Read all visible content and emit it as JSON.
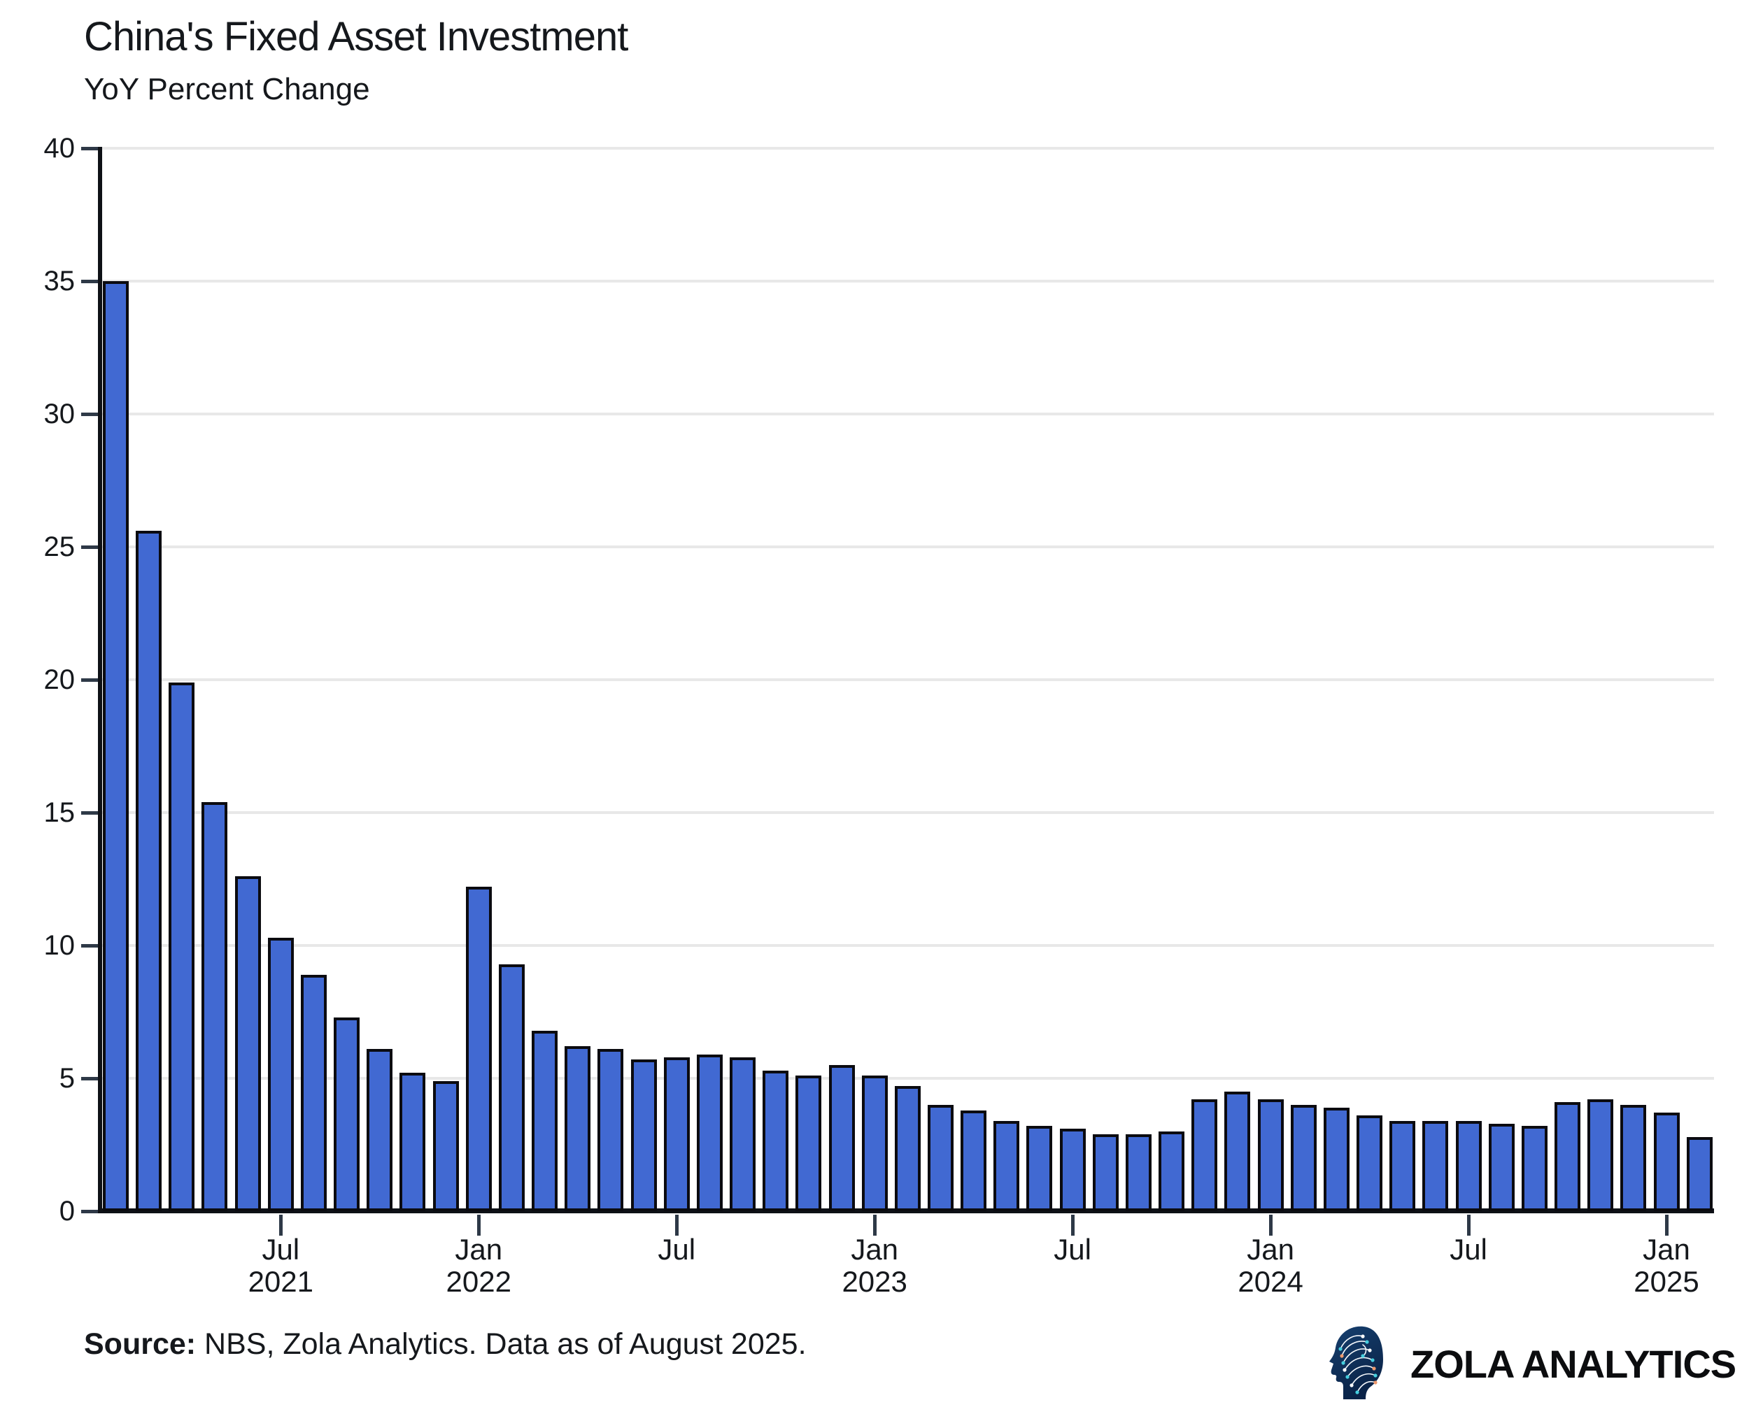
{
  "header": {
    "title": "China's Fixed Asset Investment",
    "subtitle": "YoY Percent Change"
  },
  "chart_data": {
    "type": "bar",
    "title": "China's Fixed Asset Investment",
    "subtitle": "YoY Percent Change",
    "ylabel": "YoY Percent Change",
    "ylim": [
      0,
      40
    ],
    "yticks": [
      0,
      5,
      10,
      15,
      20,
      25,
      30,
      35,
      40
    ],
    "grid": true,
    "x": [
      "Feb 2021",
      "Mar 2021",
      "Apr 2021",
      "May 2021",
      "Jun 2021",
      "Jul 2021",
      "Aug 2021",
      "Sep 2021",
      "Oct 2021",
      "Nov 2021",
      "Dec 2021",
      "Feb 2022",
      "Mar 2022",
      "Apr 2022",
      "May 2022",
      "Jun 2022",
      "Jul 2022",
      "Aug 2022",
      "Sep 2022",
      "Oct 2022",
      "Nov 2022",
      "Dec 2022",
      "Feb 2023",
      "Mar 2023",
      "Apr 2023",
      "May 2023",
      "Jun 2023",
      "Jul 2023",
      "Aug 2023",
      "Sep 2023",
      "Oct 2023",
      "Nov 2023",
      "Dec 2023",
      "Feb 2024",
      "Mar 2024",
      "Apr 2024",
      "May 2024",
      "Jun 2024",
      "Jul 2024",
      "Aug 2024",
      "Sep 2024",
      "Oct 2024",
      "Nov 2024",
      "Dec 2024",
      "Feb 2025",
      "Mar 2025",
      "Apr 2025",
      "May 2025",
      "Jun 2025"
    ],
    "values": [
      35.0,
      25.6,
      19.9,
      15.4,
      12.6,
      10.3,
      8.9,
      7.3,
      6.1,
      5.2,
      4.9,
      12.2,
      9.3,
      6.8,
      6.2,
      6.1,
      5.7,
      5.8,
      5.9,
      5.8,
      5.3,
      5.1,
      5.5,
      5.1,
      4.7,
      4.0,
      3.8,
      3.4,
      3.2,
      3.1,
      2.9,
      2.9,
      3.0,
      4.2,
      4.5,
      4.2,
      4.0,
      3.9,
      3.6,
      3.4,
      3.4,
      3.4,
      3.3,
      3.2,
      4.1,
      4.2,
      4.0,
      3.7,
      2.8
    ],
    "xticks": [
      {
        "index": 5,
        "line1": "Jul",
        "line2": "2021"
      },
      {
        "index": 11,
        "line1": "Jan",
        "line2": "2022"
      },
      {
        "index": 17,
        "line1": "Jul",
        "line2": ""
      },
      {
        "index": 23,
        "line1": "Jan",
        "line2": "2023"
      },
      {
        "index": 29,
        "line1": "Jul",
        "line2": ""
      },
      {
        "index": 35,
        "line1": "Jan",
        "line2": "2024"
      },
      {
        "index": 41,
        "line1": "Jul",
        "line2": ""
      },
      {
        "index": 47,
        "line1": "Jan",
        "line2": "2025"
      }
    ],
    "colors": {
      "bar_fill": "#4169d2",
      "bar_outline": "#0b0b10",
      "gridline": "#e8e8e8",
      "axis": "#0e1116",
      "tick": "#2e3947",
      "text": "#15181c"
    },
    "legend_position": "none"
  },
  "footer": {
    "source_label": "Source:",
    "source_text": " NBS, Zola Analytics. Data as of August 2025.",
    "brand": "ZOLA ANALYTICS",
    "logo_icon": "head-circuit-logo",
    "logo_colors": {
      "navy": "#123a66",
      "navy_dark": "#0a2348",
      "teal": "#45cede",
      "orange": "#ee9a6e",
      "trace": "#f4f7fb"
    }
  }
}
